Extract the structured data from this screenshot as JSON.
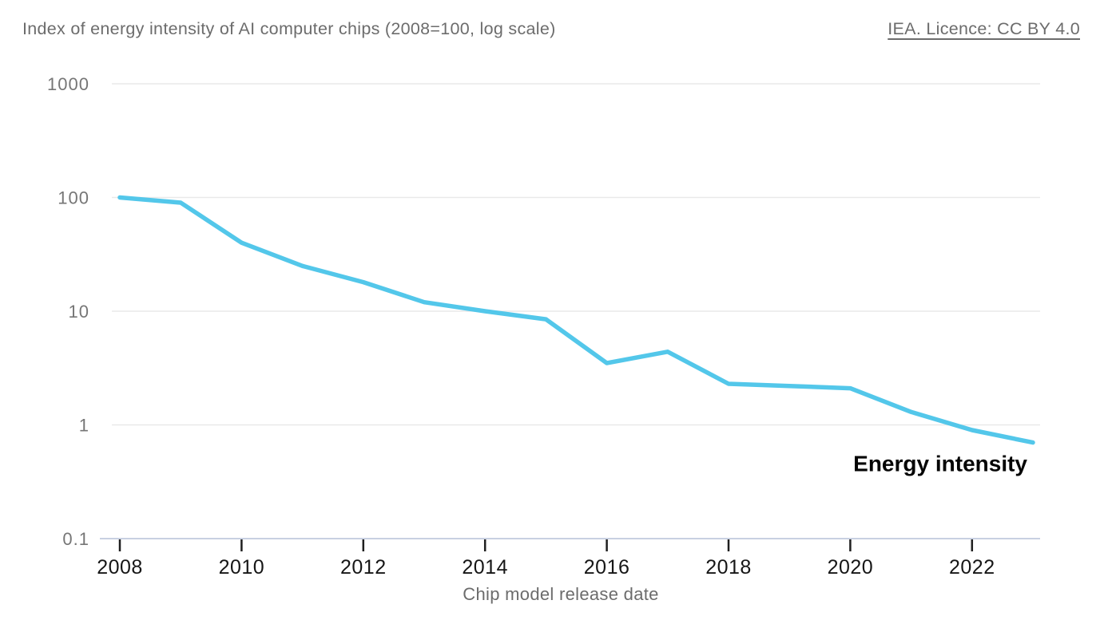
{
  "header": {
    "title": "Index of energy intensity of AI computer chips (2008=100, log scale)",
    "source_link": "IEA. Licence: CC BY 4.0"
  },
  "chart_data": {
    "type": "line",
    "title": "Index of energy intensity of AI computer chips (2008=100, log scale)",
    "source": "IEA. Licence: CC BY 4.0",
    "xlabel": "Chip model release date",
    "ylabel": "",
    "yscale": "log",
    "ylim": [
      0.1,
      1000
    ],
    "grid": "horizontal",
    "legend_position": "inline-right",
    "yticks": [
      {
        "value": 1000,
        "label": "1000"
      },
      {
        "value": 100,
        "label": "100"
      },
      {
        "value": 10,
        "label": "10"
      },
      {
        "value": 1,
        "label": "1"
      },
      {
        "value": 0.1,
        "label": "0.1"
      }
    ],
    "xticks": [
      2008,
      2010,
      2012,
      2014,
      2016,
      2018,
      2020,
      2022
    ],
    "x_range": [
      2008,
      2023
    ],
    "series": [
      {
        "name": "Energy intensity",
        "color": "#53c7ea",
        "x": [
          2008,
          2009,
          2010,
          2011,
          2012,
          2013,
          2014,
          2015,
          2016,
          2017,
          2018,
          2019,
          2020,
          2021,
          2022,
          2023
        ],
        "values": [
          100,
          90,
          40,
          25,
          18,
          12,
          10,
          8.5,
          3.5,
          4.4,
          2.3,
          2.2,
          2.1,
          1.3,
          0.9,
          0.7
        ]
      }
    ],
    "colors": {
      "line": "#53c7ea",
      "gridline": "#e9e9e9",
      "baseline": "#c8d0e2",
      "tick_mark": "#1f1f1f",
      "ytick_label": "#767676",
      "xtick_label": "#161616",
      "axis_title": "#6c6c6c",
      "series_label": "#050505",
      "title_text": "#6c6c6c"
    }
  }
}
